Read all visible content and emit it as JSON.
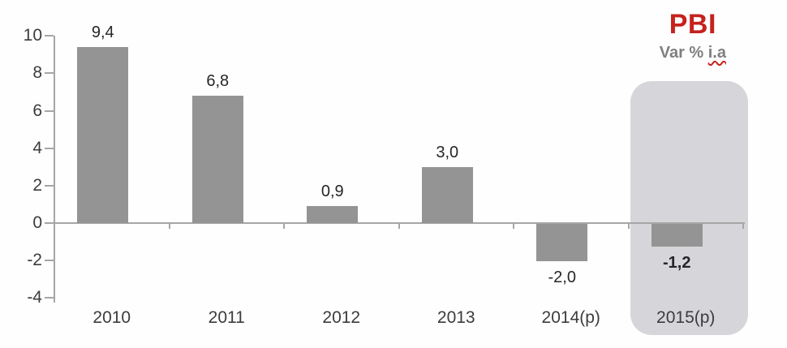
{
  "header": {
    "title": "PBI",
    "subtitle": "Var % i.a",
    "subtitle_prefix": "Var % ",
    "subtitle_emphasis": "i.a",
    "title_color": "#c5221e",
    "subtitle_color": "#7f7f7f"
  },
  "chart_data": {
    "type": "bar",
    "title": "PBI",
    "subtitle": "Var % i.a",
    "categories": [
      "2010",
      "2011",
      "2012",
      "2013",
      "2014(p)",
      "2015(p)"
    ],
    "values": [
      9.4,
      6.8,
      0.9,
      3.0,
      -2.0,
      -1.2
    ],
    "value_labels": [
      "9,4",
      "6,8",
      "0,9",
      "3,0",
      "-2,0",
      "-1,2"
    ],
    "emphasized_value_labels": [
      "-1,2"
    ],
    "yticks": [
      10,
      8,
      6,
      4,
      2,
      0,
      -2,
      -4
    ],
    "ylim": [
      -4,
      10
    ],
    "xlabel": "",
    "ylabel": "",
    "grid": false,
    "legend": "none",
    "bar_color": "#949494",
    "axis_color": "#a6a6a6",
    "tick_label_color": "#3c3c3c",
    "value_label_color": "#262626",
    "highlight": {
      "category": "2015(p)",
      "color": "#d6d5da"
    }
  }
}
